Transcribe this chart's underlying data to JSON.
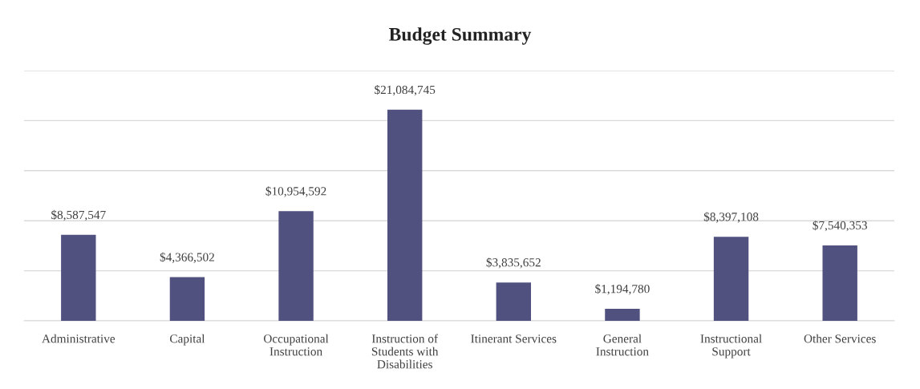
{
  "chart_data": {
    "type": "bar",
    "title": "Budget Summary",
    "categories": [
      "Administrative",
      "Capital",
      "Occupational\nInstruction",
      "Instruction of\nStudents with\nDisabilities",
      "Itinerant Services",
      "General\nInstruction",
      "Instructional\nSupport",
      "Other Services"
    ],
    "values": [
      8587547,
      4366502,
      10954592,
      21084745,
      3835652,
      1194780,
      8397108,
      7540353
    ],
    "value_labels": [
      "$8,587,547",
      "$4,366,502",
      "$10,954,592",
      "$21,084,745",
      "$3,835,652",
      "$1,194,780",
      "$8,397,108",
      "$7,540,353"
    ],
    "color": "#50517f",
    "ylim": [
      0,
      25000000
    ],
    "yticks": [
      {
        "value": 0,
        "label": null
      },
      {
        "value": 5000000,
        "label": null
      },
      {
        "value": 10000000,
        "label": null
      },
      {
        "value": 15000000,
        "label": null
      },
      {
        "value": 20000000,
        "label": null
      },
      {
        "value": 25000000,
        "label": null
      }
    ],
    "tick_labels": "x",
    "grid": "y",
    "legend": false
  }
}
